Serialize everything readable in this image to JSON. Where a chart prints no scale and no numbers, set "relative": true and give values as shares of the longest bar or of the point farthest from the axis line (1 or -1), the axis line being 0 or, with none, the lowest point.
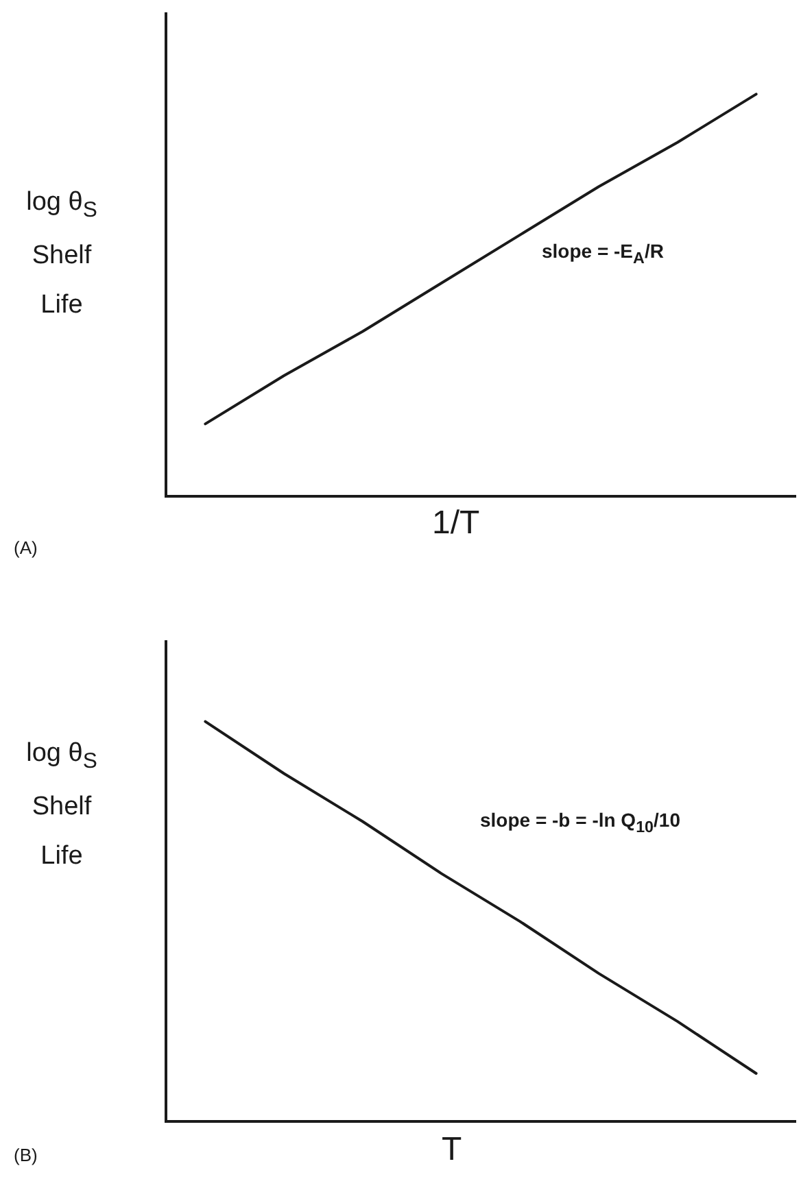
{
  "chart_data": [
    {
      "type": "line",
      "relative": true,
      "xlabel": "1/T",
      "ylabel": "log θ$_{S}$ Shelf Life",
      "categories": [
        null,
        null,
        null,
        null,
        null,
        null,
        null,
        null
      ],
      "series": [
        {
          "color": "#1a1a1a",
          "values": [
            0.18,
            0.3,
            0.41,
            0.53,
            0.65,
            0.77,
            0.88,
            1
          ]
        }
      ],
      "annotations": [
        "slope = -E$_{A}$/R",
        "(A)"
      ],
      "grid": false,
      "legend": false,
      "marker": "none",
      "tick_labels": false
    },
    {
      "type": "line",
      "relative": true,
      "xlabel": "T",
      "ylabel": "log θ$_{S}$ Shelf Life",
      "categories": [
        null,
        null,
        null,
        null,
        null,
        null,
        null,
        null
      ],
      "series": [
        {
          "color": "#1a1a1a",
          "values": [
            1,
            0.87,
            0.75,
            0.62,
            0.5,
            0.37,
            0.25,
            0.12
          ]
        }
      ],
      "annotations": [
        "slope = -b = -ln Q$_{10}$/10",
        "(B)"
      ],
      "grid": false,
      "legend": false,
      "marker": "none",
      "tick_labels": false
    }
  ]
}
